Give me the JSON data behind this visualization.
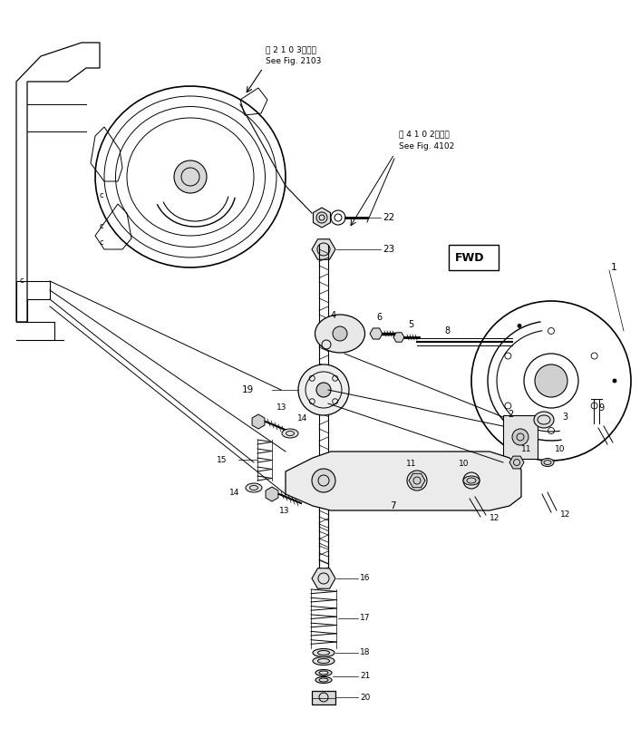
{
  "bg_color": "#ffffff",
  "line_color": "#000000",
  "fig_width": 7.06,
  "fig_height": 8.25,
  "dpi": 100,
  "annotations": {
    "see_fig_2103_jp": "第 2 1 0 3図参照",
    "see_fig_2103_en": "See Fig. 2103",
    "see_fig_4102_jp": "第 4 1 0 2図参照",
    "see_fig_4102_en": "See Fig. 4102",
    "fwd_label": "FWD"
  }
}
